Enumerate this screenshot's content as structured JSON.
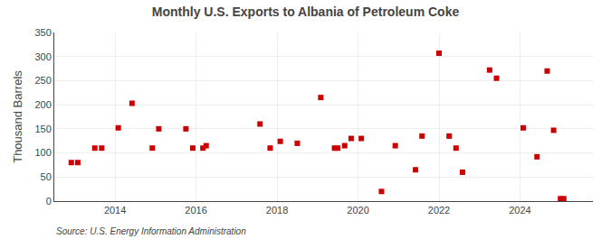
{
  "chart_data": {
    "type": "scatter",
    "title": "Monthly U.S. Exports to Albania of Petroleum Coke",
    "ylabel": "Thousand Barrels",
    "annotations": [
      "Source: U.S. Energy Information Administration"
    ],
    "color": "#cc0000",
    "marker": "square",
    "grid": true,
    "xlim": [
      2012.5,
      2025.8
    ],
    "ylim": [
      0,
      350
    ],
    "xticks": [
      2014,
      2016,
      2018,
      2020,
      2022,
      2024
    ],
    "yticks": [
      0,
      50,
      100,
      150,
      200,
      250,
      300,
      350
    ],
    "x": [
      2012.92,
      2013.08,
      2013.5,
      2013.67,
      2014.08,
      2014.42,
      2014.92,
      2015.08,
      2015.75,
      2015.92,
      2016.17,
      2016.25,
      2017.58,
      2017.83,
      2018.08,
      2018.5,
      2019.08,
      2019.42,
      2019.5,
      2019.67,
      2019.83,
      2020.08,
      2020.58,
      2020.92,
      2021.42,
      2021.58,
      2022.0,
      2022.25,
      2022.42,
      2022.58,
      2023.25,
      2023.42,
      2024.08,
      2024.42,
      2024.67,
      2024.83,
      2025.0,
      2025.08
    ],
    "values": [
      80,
      80,
      110,
      110,
      152,
      203,
      110,
      150,
      150,
      110,
      110,
      115,
      160,
      110,
      124,
      120,
      215,
      110,
      110,
      115,
      130,
      130,
      20,
      115,
      65,
      135,
      307,
      135,
      110,
      60,
      272,
      255,
      152,
      92,
      270,
      147,
      5,
      5
    ]
  }
}
